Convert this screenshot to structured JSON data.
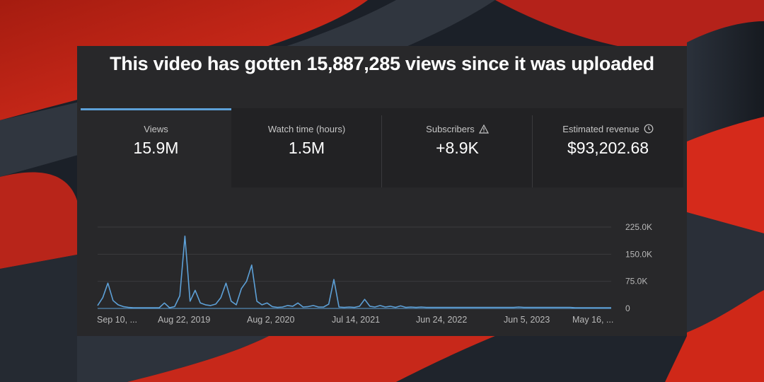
{
  "headline": "This video has gotten 15,887,285 views since it was uploaded",
  "tabs": [
    {
      "label": "Views",
      "value": "15.9M",
      "icon": null,
      "active": true
    },
    {
      "label": "Watch time (hours)",
      "value": "1.5M",
      "icon": null,
      "active": false
    },
    {
      "label": "Subscribers",
      "value": "+8.9K",
      "icon": "warning-icon",
      "active": false
    },
    {
      "label": "Estimated revenue",
      "value": "$93,202.68",
      "icon": "clock-icon",
      "active": false
    }
  ],
  "colors": {
    "accent": "#5da0d7",
    "panel": "#28282a",
    "tab_inactive": "#222224"
  },
  "chart_data": {
    "type": "line",
    "title": "",
    "xlabel": "",
    "ylabel": "",
    "x_ticks": [
      "Sep 10, ...",
      "Aug 22, 2019",
      "Aug 2, 2020",
      "Jul 14, 2021",
      "Jun 24, 2022",
      "Jun 5, 2023",
      "May 16, ..."
    ],
    "y_ticks": [
      "225.0K",
      "150.0K",
      "75.0K",
      "0"
    ],
    "ylim": [
      0,
      225000
    ],
    "grid": true,
    "series": [
      {
        "x": [
          0.0,
          0.01,
          0.02,
          0.03,
          0.04,
          0.05,
          0.06,
          0.07,
          0.08,
          0.09,
          0.1,
          0.11,
          0.12,
          0.13,
          0.14,
          0.15,
          0.16,
          0.17,
          0.18,
          0.19,
          0.2,
          0.21,
          0.22,
          0.23,
          0.24,
          0.25,
          0.26,
          0.27,
          0.28,
          0.29,
          0.3,
          0.31,
          0.32,
          0.33,
          0.34,
          0.35,
          0.36,
          0.37,
          0.38,
          0.39,
          0.4,
          0.41,
          0.42,
          0.43,
          0.44,
          0.45,
          0.46,
          0.47,
          0.48,
          0.49,
          0.5,
          0.51,
          0.52,
          0.53,
          0.54,
          0.55,
          0.56,
          0.57,
          0.58,
          0.59,
          0.6,
          0.61,
          0.62,
          0.63,
          0.64,
          0.65,
          0.66,
          0.67,
          0.68,
          0.69,
          0.7,
          0.71,
          0.72,
          0.73,
          0.74,
          0.75,
          0.76,
          0.77,
          0.78,
          0.79,
          0.8,
          0.81,
          0.82,
          0.83,
          0.84,
          0.85,
          0.86,
          0.87,
          0.88,
          0.89,
          0.9,
          0.91,
          0.92,
          0.93,
          0.94,
          0.95,
          0.96,
          0.97,
          0.98,
          0.99,
          1.0
        ],
        "values": [
          8000,
          30000,
          70000,
          22000,
          10000,
          5000,
          3000,
          2000,
          2000,
          2000,
          2000,
          2000,
          2000,
          15000,
          2000,
          5000,
          35000,
          200000,
          20000,
          50000,
          15000,
          10000,
          8000,
          12000,
          30000,
          70000,
          20000,
          10000,
          55000,
          75000,
          120000,
          20000,
          10000,
          15000,
          5000,
          3000,
          4000,
          8000,
          6000,
          15000,
          4000,
          5000,
          8000,
          4000,
          4000,
          12000,
          80000,
          4000,
          3000,
          4000,
          3000,
          6000,
          25000,
          6000,
          4000,
          8000,
          4000,
          6000,
          3000,
          7000,
          3000,
          4000,
          3000,
          4000,
          3000,
          3000,
          3000,
          3000,
          3000,
          3000,
          3000,
          3000,
          3000,
          3000,
          3000,
          3000,
          3000,
          3000,
          3000,
          3000,
          3000,
          3000,
          4000,
          3000,
          3000,
          3000,
          3000,
          3000,
          3000,
          3000,
          3000,
          3000,
          3000,
          2000,
          2000,
          2000,
          2000,
          2000,
          2000,
          2000,
          2000
        ]
      }
    ]
  }
}
